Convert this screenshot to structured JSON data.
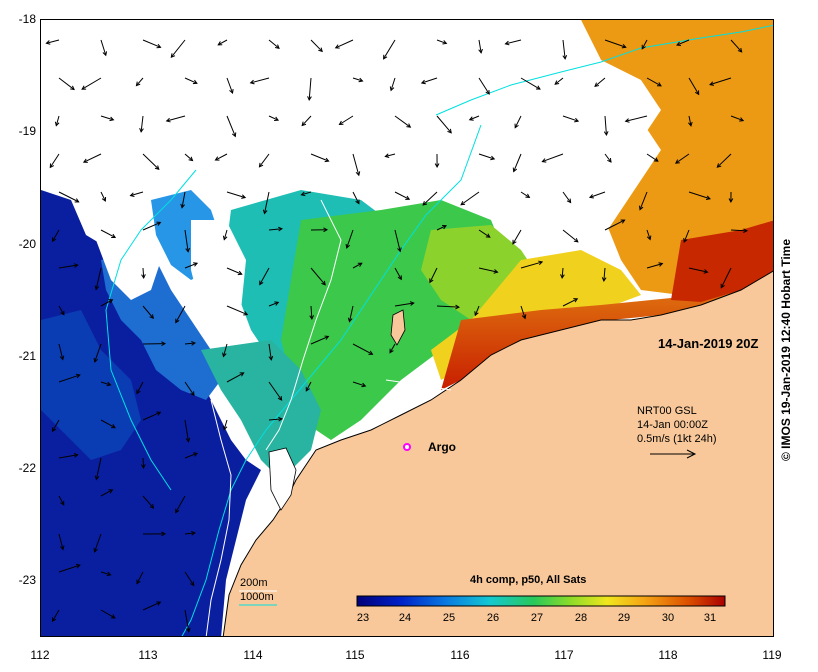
{
  "map": {
    "lon_range": [
      112,
      119
    ],
    "lat_range": [
      -23.5,
      -18
    ],
    "lon_ticks": [
      "112",
      "113",
      "114",
      "115",
      "116",
      "117",
      "118",
      "119"
    ],
    "lat_ticks": [
      "-18",
      "-19",
      "-20",
      "-21",
      "-22",
      "-23"
    ],
    "land_color": "#f8c89a",
    "cloud_color": "#ffffff"
  },
  "timestamp": "14-Jan-2019 20Z",
  "current_legend": {
    "source": "NRT00 GSL",
    "time": "14-Jan 00:00Z",
    "scale": "0.5m/s (1kt 24h)"
  },
  "argo": {
    "label": "Argo",
    "marker_color": "#ff00ff"
  },
  "bathymetry_legend": {
    "items": [
      {
        "label": "200m",
        "color": "#ffffff"
      },
      {
        "label": "1000m",
        "color": "#00e5e5"
      }
    ]
  },
  "colorbar": {
    "title": "4h comp, p50, All Sats",
    "min": 22.6,
    "max": 31.4,
    "ticks": [
      "23",
      "24",
      "25",
      "26",
      "27",
      "28",
      "29",
      "30",
      "31"
    ]
  },
  "credit": "© IMOS 19-Jan-2019 12:40 Hobart Time"
}
